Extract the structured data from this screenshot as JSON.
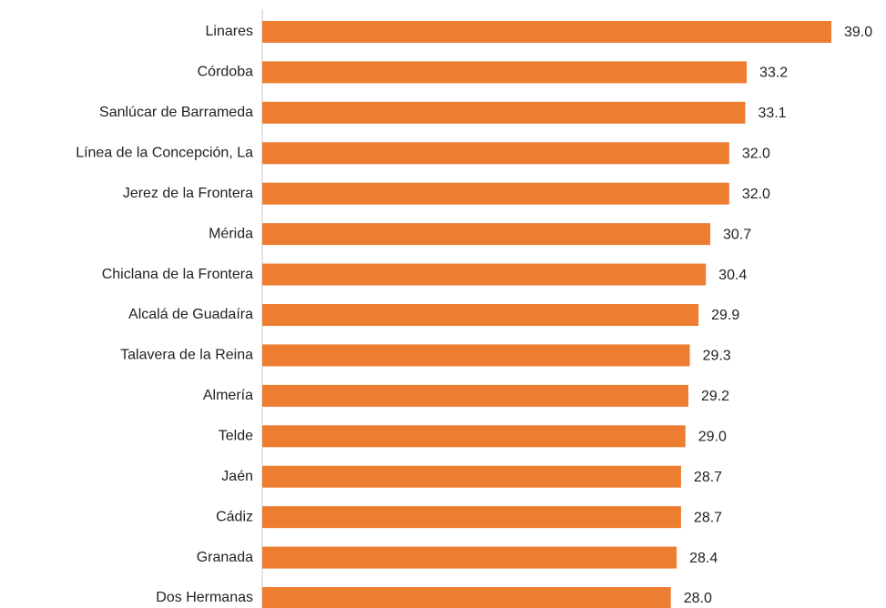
{
  "chart_data": {
    "type": "bar",
    "orientation": "horizontal",
    "categories": [
      "Linares",
      "Córdoba",
      "Sanlúcar de Barrameda",
      "Línea de la Concepción, La",
      "Jerez de la Frontera",
      "Mérida",
      "Chiclana de la Frontera",
      "Alcalá de Guadaíra",
      "Talavera de la Reina",
      "Almería",
      "Telde",
      "Jaén",
      "Cádiz",
      "Granada",
      "Dos Hermanas"
    ],
    "values": [
      39.0,
      33.2,
      33.1,
      32.0,
      32.0,
      30.7,
      30.4,
      29.9,
      29.3,
      29.2,
      29.0,
      28.7,
      28.7,
      28.4,
      28.0
    ],
    "value_labels": [
      "39.0",
      "33.2",
      "33.1",
      "32.0",
      "32.0",
      "30.7",
      "30.4",
      "29.9",
      "29.3",
      "29.2",
      "29.0",
      "28.7",
      "28.7",
      "28.4",
      "28.0"
    ],
    "color": "#ed7d31"
  }
}
